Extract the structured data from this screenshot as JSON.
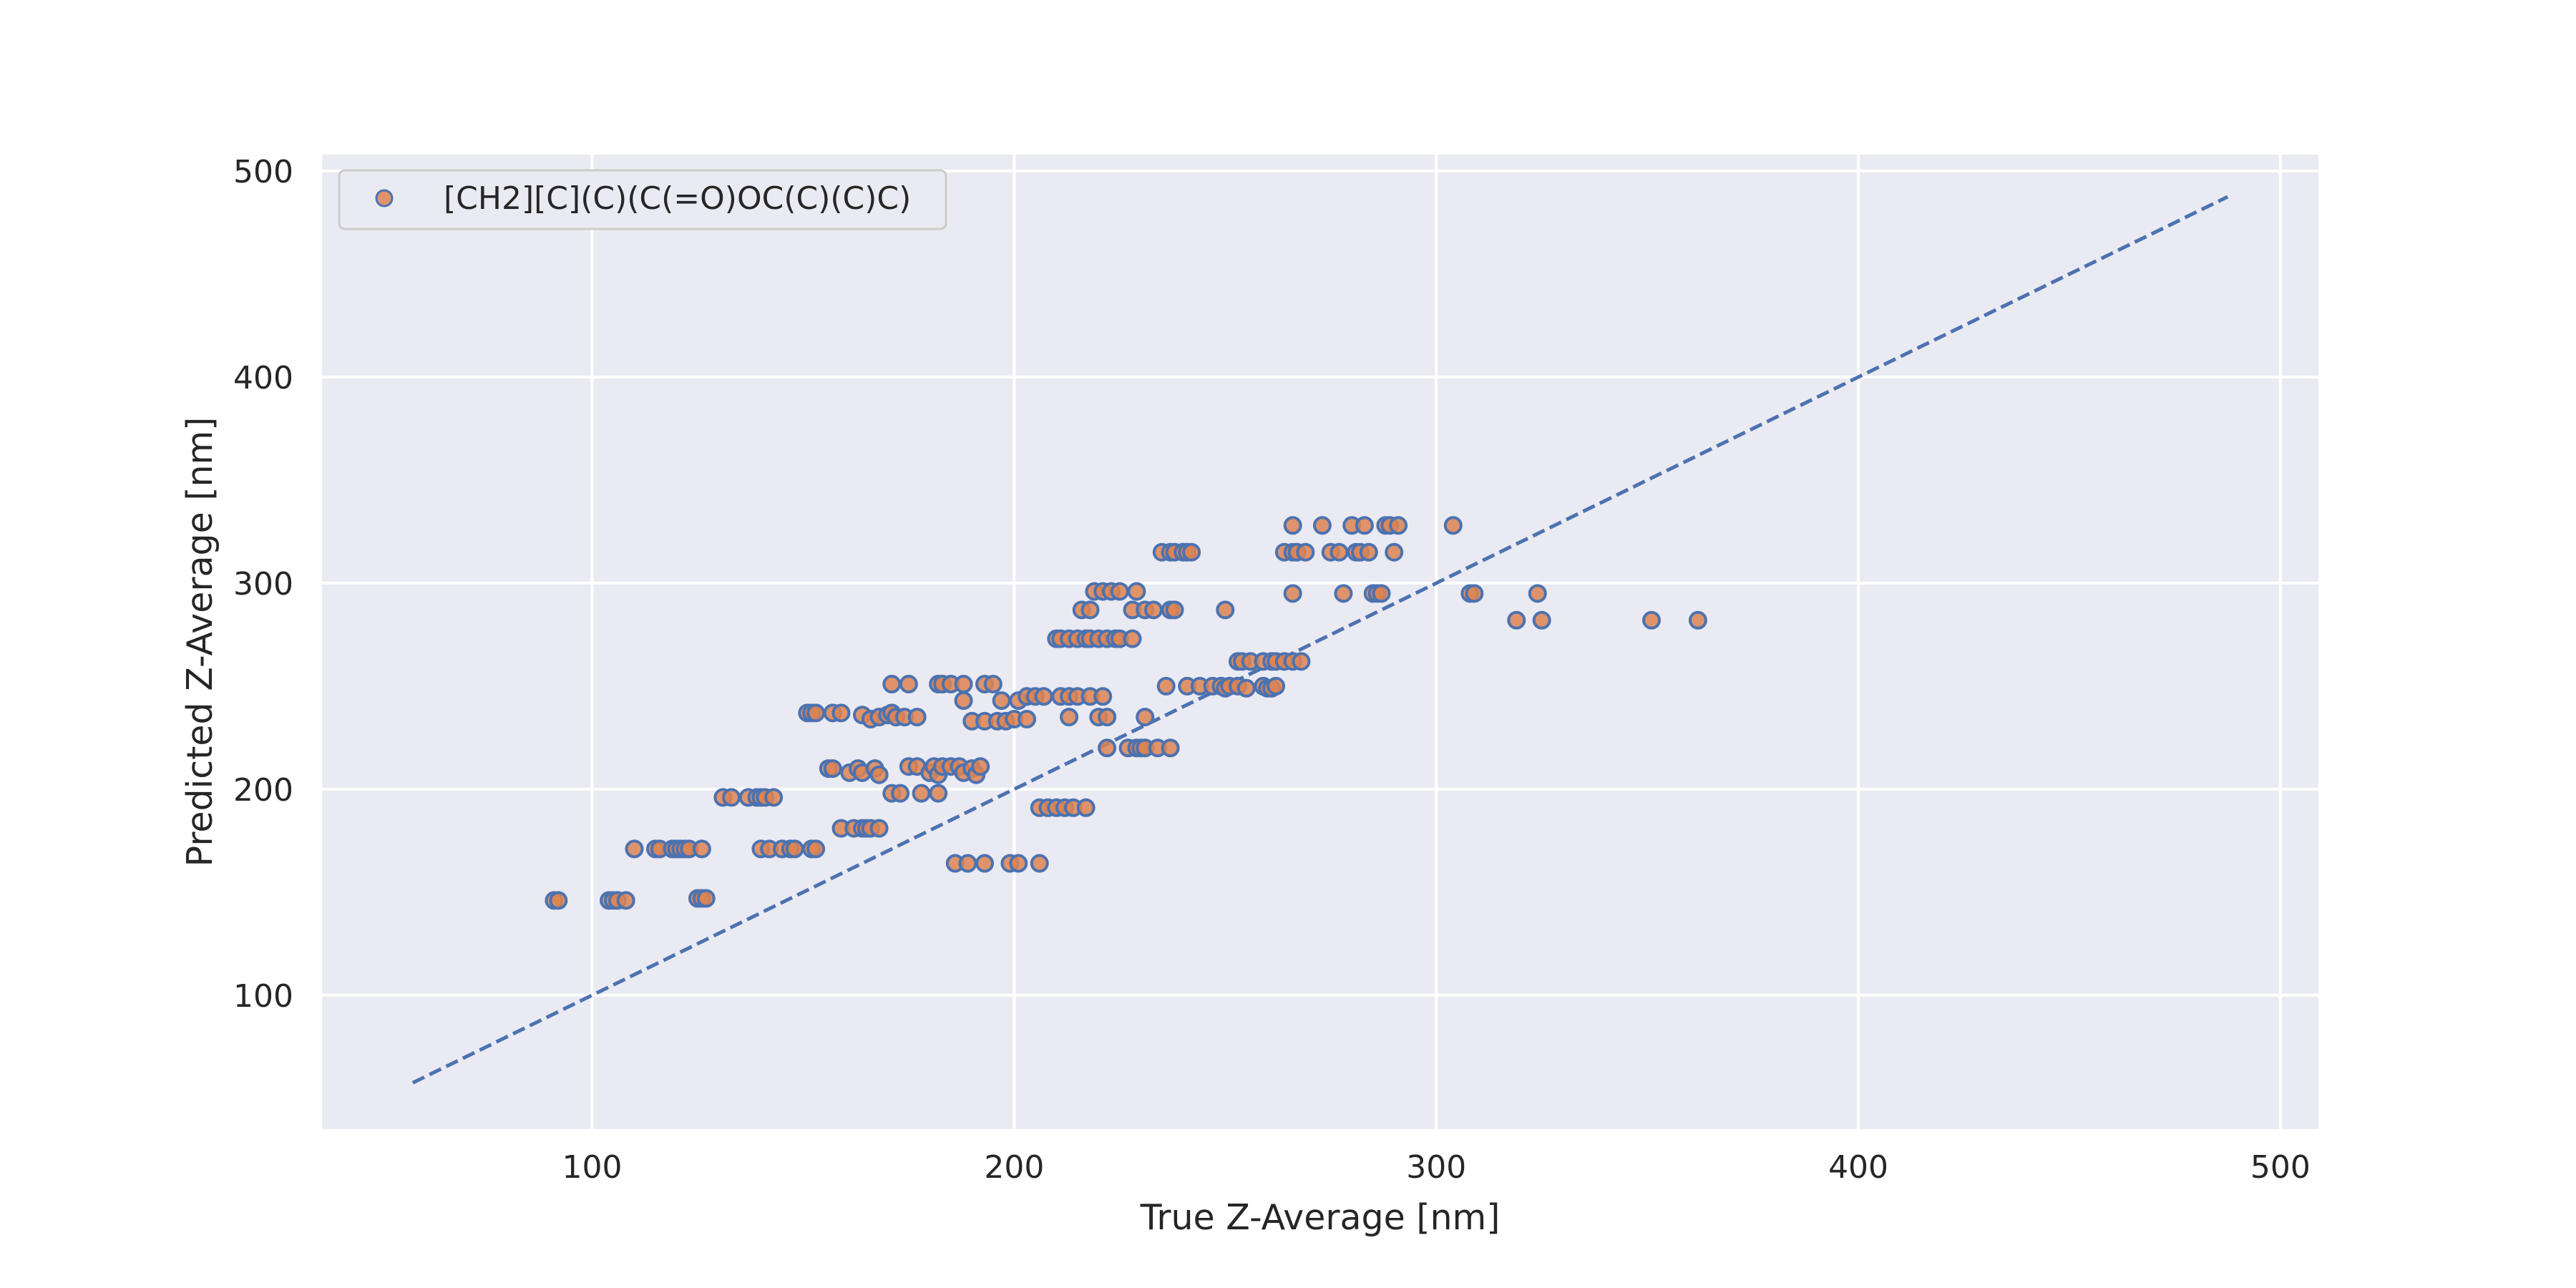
{
  "chart_data": {
    "type": "scatter",
    "title": "",
    "xlabel": "True Z-Average [nm]",
    "ylabel": "Predicted Z-Average [nm]",
    "xlim": [
      36,
      509
    ],
    "ylim": [
      35,
      508
    ],
    "xticks": [
      100,
      200,
      300,
      400,
      500
    ],
    "yticks": [
      100,
      200,
      300,
      400,
      500
    ],
    "grid": true,
    "background": "#eaeaf2",
    "legend_position": "top-left",
    "series": [
      {
        "name": "[CH2][C](C)(C(=O)OC(C)(C)C)",
        "marker": "circle",
        "face_color": "#dd8452",
        "edge_color": "#4c72b0",
        "points": [
          [
            91,
            146
          ],
          [
            92,
            146
          ],
          [
            104,
            146
          ],
          [
            105,
            146
          ],
          [
            106,
            146
          ],
          [
            108,
            146
          ],
          [
            110,
            171
          ],
          [
            115,
            171
          ],
          [
            116,
            171
          ],
          [
            119,
            171
          ],
          [
            120,
            171
          ],
          [
            121,
            171
          ],
          [
            122,
            171
          ],
          [
            123,
            171
          ],
          [
            126,
            171
          ],
          [
            125,
            147
          ],
          [
            126,
            147
          ],
          [
            127,
            147
          ],
          [
            131,
            196
          ],
          [
            133,
            196
          ],
          [
            137,
            196
          ],
          [
            139,
            196
          ],
          [
            140,
            196
          ],
          [
            141,
            196
          ],
          [
            143,
            196
          ],
          [
            140,
            171
          ],
          [
            142,
            171
          ],
          [
            145,
            171
          ],
          [
            147,
            171
          ],
          [
            148,
            171
          ],
          [
            151,
            237
          ],
          [
            152,
            237
          ],
          [
            153,
            237
          ],
          [
            157,
            237
          ],
          [
            159,
            237
          ],
          [
            152,
            171
          ],
          [
            153,
            171
          ],
          [
            156,
            210
          ],
          [
            157,
            210
          ],
          [
            161,
            208
          ],
          [
            163,
            210
          ],
          [
            164,
            208
          ],
          [
            167,
            210
          ],
          [
            168,
            207
          ],
          [
            159,
            181
          ],
          [
            162,
            181
          ],
          [
            164,
            181
          ],
          [
            165,
            181
          ],
          [
            166,
            181
          ],
          [
            168,
            181
          ],
          [
            164,
            236
          ],
          [
            166,
            234
          ],
          [
            168,
            235
          ],
          [
            170,
            236
          ],
          [
            171,
            237
          ],
          [
            172,
            235
          ],
          [
            174,
            235
          ],
          [
            171,
            251
          ],
          [
            175,
            251
          ],
          [
            171,
            198
          ],
          [
            173,
            198
          ],
          [
            178,
            198
          ],
          [
            182,
            198
          ],
          [
            175,
            211
          ],
          [
            177,
            211
          ],
          [
            180,
            208
          ],
          [
            181,
            211
          ],
          [
            182,
            207
          ],
          [
            183,
            211
          ],
          [
            185,
            211
          ],
          [
            187,
            211
          ],
          [
            188,
            208
          ],
          [
            190,
            210
          ],
          [
            191,
            207
          ],
          [
            192,
            211
          ],
          [
            177,
            235
          ],
          [
            182,
            251
          ],
          [
            183,
            251
          ],
          [
            185,
            251
          ],
          [
            188,
            251
          ],
          [
            186,
            164
          ],
          [
            189,
            164
          ],
          [
            193,
            164
          ],
          [
            199,
            164
          ],
          [
            201,
            164
          ],
          [
            206,
            164
          ],
          [
            188,
            243
          ],
          [
            190,
            233
          ],
          [
            193,
            251
          ],
          [
            195,
            251
          ],
          [
            193,
            233
          ],
          [
            196,
            233
          ],
          [
            198,
            233
          ],
          [
            200,
            234
          ],
          [
            203,
            234
          ],
          [
            197,
            243
          ],
          [
            201,
            243
          ],
          [
            203,
            245
          ],
          [
            205,
            245
          ],
          [
            207,
            245
          ],
          [
            206,
            191
          ],
          [
            208,
            191
          ],
          [
            210,
            191
          ],
          [
            212,
            191
          ],
          [
            214,
            191
          ],
          [
            217,
            191
          ],
          [
            210,
            273
          ],
          [
            211,
            273
          ],
          [
            213,
            273
          ],
          [
            215,
            273
          ],
          [
            217,
            273
          ],
          [
            218,
            273
          ],
          [
            220,
            273
          ],
          [
            222,
            273
          ],
          [
            224,
            273
          ],
          [
            225,
            273
          ],
          [
            228,
            273
          ],
          [
            211,
            245
          ],
          [
            213,
            245
          ],
          [
            215,
            245
          ],
          [
            218,
            245
          ],
          [
            221,
            245
          ],
          [
            213,
            235
          ],
          [
            220,
            235
          ],
          [
            222,
            235
          ],
          [
            216,
            287
          ],
          [
            218,
            287
          ],
          [
            219,
            296
          ],
          [
            221,
            296
          ],
          [
            223,
            296
          ],
          [
            225,
            296
          ],
          [
            229,
            296
          ],
          [
            228,
            287
          ],
          [
            231,
            287
          ],
          [
            233,
            287
          ],
          [
            222,
            220
          ],
          [
            227,
            220
          ],
          [
            229,
            220
          ],
          [
            230,
            220
          ],
          [
            231,
            220
          ],
          [
            234,
            220
          ],
          [
            237,
            220
          ],
          [
            231,
            235
          ],
          [
            235,
            315
          ],
          [
            237,
            315
          ],
          [
            238,
            315
          ],
          [
            240,
            315
          ],
          [
            241,
            315
          ],
          [
            242,
            315
          ],
          [
            236,
            250
          ],
          [
            237,
            287
          ],
          [
            238,
            287
          ],
          [
            241,
            250
          ],
          [
            244,
            250
          ],
          [
            247,
            250
          ],
          [
            249,
            250
          ],
          [
            250,
            249
          ],
          [
            251,
            250
          ],
          [
            253,
            250
          ],
          [
            255,
            249
          ],
          [
            250,
            287
          ],
          [
            253,
            262
          ],
          [
            254,
            262
          ],
          [
            256,
            262
          ],
          [
            259,
            262
          ],
          [
            261,
            262
          ],
          [
            262,
            262
          ],
          [
            264,
            262
          ],
          [
            266,
            262
          ],
          [
            268,
            262
          ],
          [
            259,
            250
          ],
          [
            260,
            249
          ],
          [
            261,
            249
          ],
          [
            262,
            250
          ],
          [
            264,
            315
          ],
          [
            266,
            315
          ],
          [
            267,
            315
          ],
          [
            269,
            315
          ],
          [
            266,
            295
          ],
          [
            266,
            328
          ],
          [
            273,
            328
          ],
          [
            275,
            315
          ],
          [
            277,
            315
          ],
          [
            278,
            295
          ],
          [
            280,
            328
          ],
          [
            281,
            315
          ],
          [
            282,
            315
          ],
          [
            283,
            328
          ],
          [
            284,
            315
          ],
          [
            285,
            295
          ],
          [
            286,
            295
          ],
          [
            287,
            295
          ],
          [
            288,
            328
          ],
          [
            289,
            328
          ],
          [
            290,
            315
          ],
          [
            291,
            328
          ],
          [
            304,
            328
          ],
          [
            308,
            295
          ],
          [
            309,
            295
          ],
          [
            319,
            282
          ],
          [
            324,
            295
          ],
          [
            325,
            282
          ],
          [
            351,
            282
          ],
          [
            362,
            282
          ]
        ]
      }
    ],
    "reference_line": {
      "style": "dashed",
      "color": "#4c72b0",
      "from": [
        57.5,
        57.5
      ],
      "to": [
        487.5,
        487.5
      ]
    }
  }
}
